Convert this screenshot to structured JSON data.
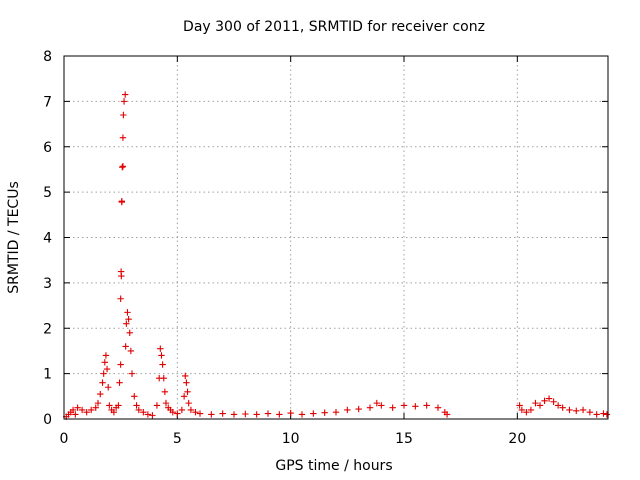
{
  "chart_data": {
    "type": "scatter",
    "title": "Day 300 of 2011, SRMTID for receiver conz",
    "xlabel": "GPS time / hours",
    "ylabel": "SRMTID / TECUs",
    "xlim": [
      0,
      24
    ],
    "ylim": [
      0,
      8
    ],
    "xticks": [
      0,
      5,
      10,
      15,
      20
    ],
    "yticks": [
      0,
      1,
      2,
      3,
      4,
      5,
      6,
      7,
      8
    ],
    "grid": true,
    "marker": "plus",
    "marker_color": "#e00000",
    "series": [
      {
        "name": "SRMTID",
        "x": [
          0.1,
          0.2,
          0.3,
          0.4,
          0.5,
          0.6,
          0.8,
          1.0,
          1.2,
          1.4,
          1.5,
          1.6,
          1.7,
          1.75,
          1.8,
          1.85,
          1.9,
          1.95,
          2.0,
          2.1,
          2.2,
          2.3,
          2.4,
          2.45,
          2.5,
          2.5,
          2.52,
          2.53,
          2.55,
          2.55,
          2.57,
          2.6,
          2.6,
          2.62,
          2.65,
          2.7,
          2.72,
          2.75,
          2.8,
          2.85,
          2.9,
          2.95,
          3.0,
          3.1,
          3.2,
          3.3,
          3.5,
          3.7,
          3.9,
          4.1,
          4.2,
          4.25,
          4.3,
          4.35,
          4.4,
          4.45,
          4.5,
          4.6,
          4.7,
          4.8,
          5.0,
          5.2,
          5.3,
          5.35,
          5.4,
          5.45,
          5.5,
          5.6,
          5.8,
          6.0,
          6.5,
          7.0,
          7.5,
          8.0,
          8.5,
          9.0,
          9.5,
          10.0,
          10.5,
          11.0,
          11.5,
          12.0,
          12.5,
          13.0,
          13.5,
          13.8,
          14.0,
          14.5,
          15.0,
          15.5,
          16.0,
          16.5,
          16.8,
          16.9,
          20.1,
          20.2,
          20.4,
          20.6,
          20.8,
          21.0,
          21.2,
          21.4,
          21.6,
          21.8,
          22.0,
          22.3,
          22.6,
          22.9,
          23.2,
          23.5,
          23.8,
          23.95
        ],
        "y": [
          0.05,
          0.1,
          0.15,
          0.2,
          0.1,
          0.25,
          0.2,
          0.15,
          0.2,
          0.25,
          0.35,
          0.55,
          0.8,
          1.0,
          1.25,
          1.4,
          1.1,
          0.7,
          0.3,
          0.2,
          0.15,
          0.25,
          0.3,
          0.8,
          1.2,
          2.65,
          3.25,
          3.15,
          4.8,
          4.78,
          5.55,
          5.57,
          6.2,
          6.7,
          7.0,
          7.15,
          1.6,
          2.1,
          2.35,
          2.2,
          1.9,
          1.5,
          1.0,
          0.5,
          0.3,
          0.2,
          0.15,
          0.1,
          0.08,
          0.3,
          0.9,
          1.55,
          1.4,
          1.2,
          0.9,
          0.6,
          0.35,
          0.25,
          0.2,
          0.15,
          0.12,
          0.2,
          0.5,
          0.95,
          0.8,
          0.6,
          0.35,
          0.2,
          0.15,
          0.12,
          0.1,
          0.12,
          0.1,
          0.11,
          0.1,
          0.12,
          0.1,
          0.13,
          0.1,
          0.12,
          0.14,
          0.15,
          0.2,
          0.22,
          0.25,
          0.35,
          0.3,
          0.25,
          0.3,
          0.28,
          0.3,
          0.25,
          0.15,
          0.1,
          0.3,
          0.2,
          0.15,
          0.2,
          0.35,
          0.3,
          0.4,
          0.45,
          0.38,
          0.3,
          0.25,
          0.2,
          0.18,
          0.2,
          0.15,
          0.1,
          0.12,
          0.1
        ]
      }
    ]
  }
}
